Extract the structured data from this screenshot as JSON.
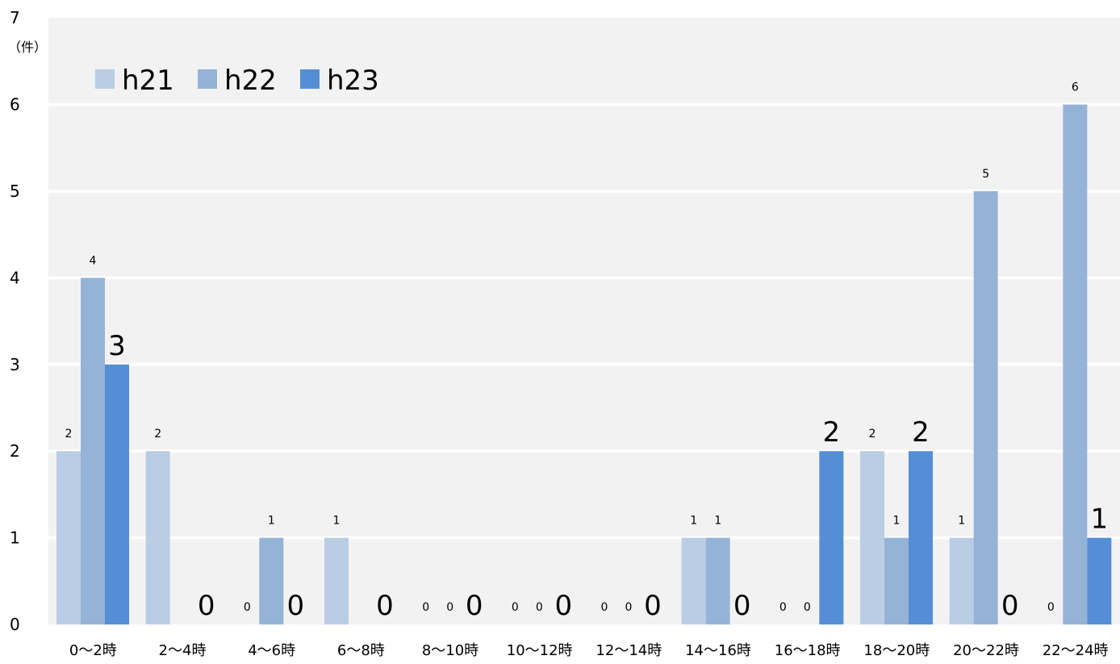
{
  "chart_data": {
    "type": "bar",
    "unit_label": "（件）",
    "categories": [
      "0〜2時",
      "2〜4時",
      "4〜6時",
      "6〜8時",
      "8〜10時",
      "10〜12時",
      "12〜14時",
      "14〜16時",
      "16〜18時",
      "18〜20時",
      "20〜22時",
      "22〜24時"
    ],
    "series": [
      {
        "name": "h21",
        "color": "#b9cde5",
        "values": [
          2,
          2,
          0,
          1,
          0,
          0,
          0,
          1,
          0,
          2,
          1,
          0
        ]
      },
      {
        "name": "h22",
        "color": "#95b3d7",
        "values": [
          4,
          null,
          1,
          null,
          0,
          0,
          0,
          1,
          0,
          1,
          5,
          6
        ]
      },
      {
        "name": "h23",
        "color": "#558ed5",
        "values": [
          3,
          0,
          0,
          0,
          0,
          0,
          0,
          0,
          2,
          2,
          0,
          1
        ]
      }
    ],
    "ylim": [
      0,
      7
    ],
    "yticks": [
      0,
      1,
      2,
      3,
      4,
      5,
      6,
      7
    ],
    "grid": true,
    "legend": "top-left",
    "xlabel": "",
    "ylabel": "",
    "title": ""
  }
}
